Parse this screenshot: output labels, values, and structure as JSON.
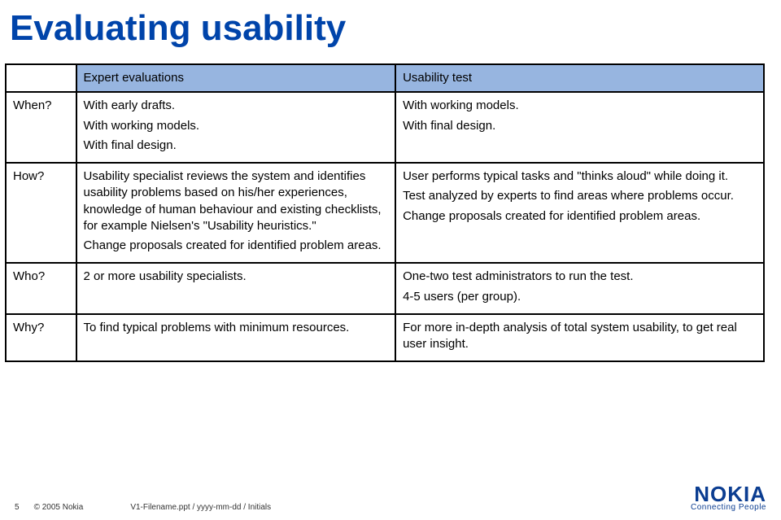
{
  "title": "Evaluating usability",
  "table": {
    "headers": {
      "col1": "Expert evaluations",
      "col2": "Usability test"
    },
    "rows": [
      {
        "label": "When?",
        "col1": [
          "With early drafts.",
          "With working models.",
          "With final design."
        ],
        "col2": [
          "With working models.",
          "With final design."
        ]
      },
      {
        "label": "How?",
        "col1": [
          "Usability specialist reviews the system and identifies usability problems based on his/her experiences, knowledge of human behaviour and existing checklists, for example Nielsen's \"Usability heuristics.\"",
          "Change proposals created for identified problem areas."
        ],
        "col2": [
          "User performs typical tasks and \"thinks aloud\" while doing it.",
          "Test analyzed by experts to find areas where problems occur.",
          "Change proposals created for identified problem areas."
        ]
      },
      {
        "label": "Who?",
        "col1": [
          "2 or more usability specialists."
        ],
        "col2": [
          "One-two test administrators to run the test.",
          "4-5 users (per group)."
        ]
      },
      {
        "label": "Why?",
        "col1": [
          "To find typical problems with minimum resources."
        ],
        "col2": [
          "For more in-depth analysis of total system usability, to get real user insight."
        ]
      }
    ]
  },
  "footer": {
    "page": "5",
    "copyright": "© 2005 Nokia",
    "filename": "V1-Filename.ppt / yyyy-mm-dd / Initials",
    "logo_text": "NOKIA",
    "tagline": "Connecting People"
  },
  "colors": {
    "title": "#0044aa",
    "header_bg": "#97b5e0",
    "border": "#000000",
    "logo": "#0b3d91"
  }
}
